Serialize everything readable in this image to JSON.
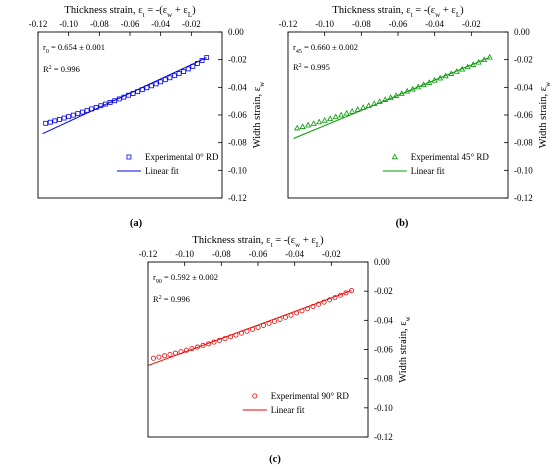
{
  "chart_data": [
    {
      "type": "scatter",
      "caption": "(a)",
      "xlabel": "Thickness strain, ε_t = -(ε_w + ε_L)",
      "ylabel": "Width strain, ε_w",
      "xlim": [
        -0.12,
        0.0
      ],
      "ylim": [
        -0.12,
        0.0
      ],
      "xticks": [
        "-0.12",
        "-0.10",
        "-0.08",
        "-0.06",
        "-0.04",
        "-0.02"
      ],
      "yticks": [
        "0.00",
        "-0.02",
        "-0.04",
        "-0.06",
        "-0.08",
        "-0.10",
        "-0.12"
      ],
      "x_axis_position": "top",
      "y_axis_position": "right",
      "grid": false,
      "r_symbol": "r",
      "r_sub": "0",
      "r_value": " = 0.654 ± 0.001",
      "r2_text": "R",
      "r2_sup": "2",
      "r2_value": " = 0.996",
      "legend_position": "bottom-right",
      "color": "#0000ee",
      "marker": "square",
      "series": [
        {
          "name": "Experimental    0° RD",
          "kind": "points",
          "x": [
            -0.115,
            -0.112,
            -0.109,
            -0.106,
            -0.103,
            -0.1,
            -0.097,
            -0.094,
            -0.091,
            -0.088,
            -0.085,
            -0.082,
            -0.079,
            -0.076,
            -0.073,
            -0.07,
            -0.067,
            -0.064,
            -0.061,
            -0.058,
            -0.055,
            -0.052,
            -0.049,
            -0.046,
            -0.043,
            -0.04,
            -0.037,
            -0.034,
            -0.031,
            -0.028,
            -0.025,
            -0.022,
            -0.019,
            -0.016,
            -0.013,
            -0.01
          ],
          "y": [
            -0.066,
            -0.0652,
            -0.0642,
            -0.0632,
            -0.0622,
            -0.0612,
            -0.0601,
            -0.059,
            -0.0579,
            -0.0568,
            -0.0556,
            -0.0545,
            -0.0533,
            -0.0521,
            -0.0509,
            -0.0497,
            -0.0484,
            -0.0471,
            -0.0457,
            -0.0444,
            -0.0431,
            -0.0417,
            -0.0403,
            -0.0389,
            -0.0375,
            -0.036,
            -0.0345,
            -0.0331,
            -0.0316,
            -0.0301,
            -0.0286,
            -0.0267,
            -0.0248,
            -0.0227,
            -0.0206,
            -0.0185
          ]
        },
        {
          "name": "Linear fit",
          "kind": "line",
          "x": [
            -0.117,
            -0.01
          ],
          "y": [
            -0.0735,
            -0.0185
          ]
        }
      ]
    },
    {
      "type": "scatter",
      "caption": "(b)",
      "xlabel": "Thickness strain, ε_t = -(ε_w + ε_L)",
      "ylabel": "Width strain, ε_w",
      "xlim": [
        -0.12,
        0.0
      ],
      "ylim": [
        -0.12,
        0.0
      ],
      "xticks": [
        "-0.12",
        "-0.10",
        "-0.08",
        "-0.06",
        "-0.04",
        "-0.02"
      ],
      "yticks": [
        "0.00",
        "-0.02",
        "-0.04",
        "-0.06",
        "-0.08",
        "-0.10",
        "-0.12"
      ],
      "x_axis_position": "top",
      "y_axis_position": "right",
      "grid": false,
      "r_symbol": "r",
      "r_sub": "45",
      "r_value": " = 0.660 ± 0.002",
      "r2_text": "R",
      "r2_sup": "2",
      "r2_value": " = 0.995",
      "legend_position": "bottom-right",
      "color": "#009900",
      "marker": "triangle",
      "series": [
        {
          "name": "Experimental    45° RD",
          "kind": "points",
          "x": [
            -0.115,
            -0.112,
            -0.109,
            -0.106,
            -0.103,
            -0.1,
            -0.097,
            -0.094,
            -0.091,
            -0.088,
            -0.085,
            -0.082,
            -0.079,
            -0.076,
            -0.073,
            -0.07,
            -0.067,
            -0.064,
            -0.061,
            -0.058,
            -0.055,
            -0.052,
            -0.049,
            -0.046,
            -0.043,
            -0.04,
            -0.037,
            -0.034,
            -0.031,
            -0.028,
            -0.025,
            -0.022,
            -0.019,
            -0.016,
            -0.013,
            -0.01
          ],
          "y": [
            -0.0695,
            -0.0685,
            -0.0674,
            -0.0663,
            -0.0651,
            -0.0639,
            -0.0627,
            -0.0614,
            -0.0601,
            -0.0588,
            -0.0575,
            -0.0561,
            -0.0547,
            -0.0533,
            -0.0519,
            -0.0504,
            -0.049,
            -0.0475,
            -0.046,
            -0.0445,
            -0.0429,
            -0.0414,
            -0.0398,
            -0.0382,
            -0.0366,
            -0.035,
            -0.0334,
            -0.0318,
            -0.0302,
            -0.0286,
            -0.027,
            -0.0253,
            -0.0236,
            -0.0219,
            -0.0201,
            -0.0183
          ]
        },
        {
          "name": "Linear fit",
          "kind": "line",
          "x": [
            -0.117,
            -0.01
          ],
          "y": [
            -0.077,
            -0.0183
          ]
        }
      ]
    },
    {
      "type": "scatter",
      "caption": "(c)",
      "xlabel": "Thickness strain, ε_t = -(ε_w + ε_L)",
      "ylabel": "Width strain, ε_w",
      "xlim": [
        -0.12,
        0.0
      ],
      "ylim": [
        -0.12,
        0.0
      ],
      "xticks": [
        "-0.12",
        "-0.10",
        "-0.08",
        "-0.06",
        "-0.04",
        "-0.02"
      ],
      "yticks": [
        "0.00",
        "-0.02",
        "-0.04",
        "-0.06",
        "-0.08",
        "-0.10",
        "-0.12"
      ],
      "x_axis_position": "top",
      "y_axis_position": "right",
      "grid": false,
      "r_symbol": "r",
      "r_sub": "90",
      "r_value": " = 0.592 ± 0.002",
      "r2_text": "R",
      "r2_sup": "2",
      "r2_value": " = 0.996",
      "legend_position": "bottom-right",
      "color": "#ee0000",
      "marker": "circle",
      "series": [
        {
          "name": "Experimental    90° RD",
          "kind": "points",
          "x": [
            -0.117,
            -0.114,
            -0.111,
            -0.108,
            -0.105,
            -0.102,
            -0.099,
            -0.096,
            -0.093,
            -0.09,
            -0.087,
            -0.084,
            -0.081,
            -0.078,
            -0.075,
            -0.072,
            -0.069,
            -0.066,
            -0.063,
            -0.06,
            -0.057,
            -0.054,
            -0.051,
            -0.048,
            -0.045,
            -0.042,
            -0.039,
            -0.036,
            -0.033,
            -0.03,
            -0.027,
            -0.024,
            -0.021,
            -0.018,
            -0.015,
            -0.012,
            -0.009
          ],
          "y": [
            -0.066,
            -0.0652,
            -0.0643,
            -0.0634,
            -0.0625,
            -0.0615,
            -0.0605,
            -0.0594,
            -0.0583,
            -0.0572,
            -0.0561,
            -0.0549,
            -0.0537,
            -0.0525,
            -0.0513,
            -0.0501,
            -0.0488,
            -0.0475,
            -0.0462,
            -0.0449,
            -0.0435,
            -0.0421,
            -0.0407,
            -0.0393,
            -0.0379,
            -0.0365,
            -0.035,
            -0.0335,
            -0.032,
            -0.0305,
            -0.029,
            -0.0275,
            -0.026,
            -0.0244,
            -0.0228,
            -0.0212,
            -0.0196
          ]
        },
        {
          "name": "Linear fit",
          "kind": "line",
          "x": [
            -0.12,
            -0.009
          ],
          "y": [
            -0.071,
            -0.0196
          ]
        }
      ]
    }
  ]
}
